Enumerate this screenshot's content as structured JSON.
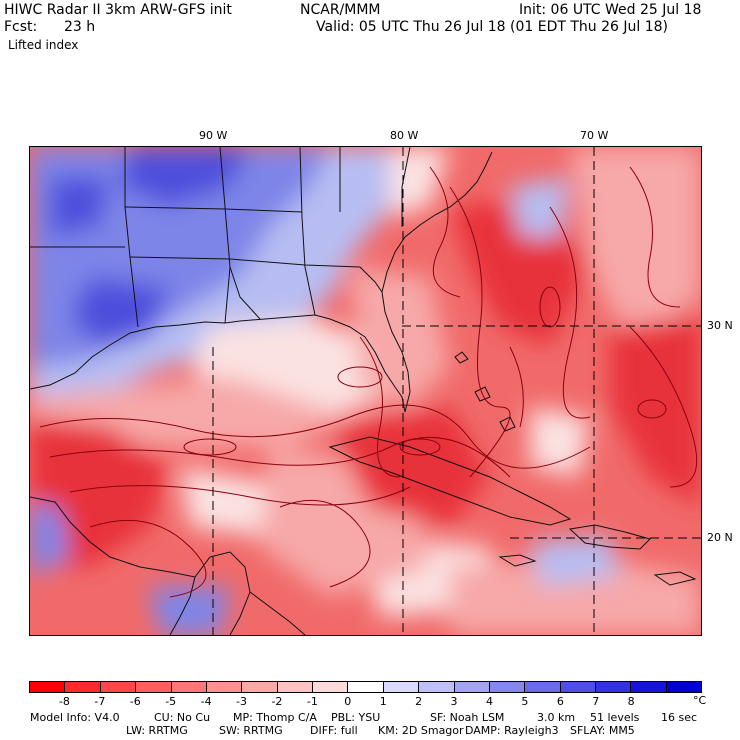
{
  "header": {
    "model_title": "HIWC Radar II 3km ARW-GFS init",
    "org": "NCAR/MMM",
    "init": "Init: 06 UTC Wed 25 Jul 18",
    "fcst_label": "Fcst:",
    "fcst_value": "23 h",
    "valid": "Valid: 05 UTC Thu 26 Jul 18 (01 EDT Thu 26 Jul 18)",
    "field": "Lifted index"
  },
  "map": {
    "lon_labels": [
      "90 W",
      "80 W",
      "70 W"
    ],
    "lat_labels": [
      "30 N",
      "20 N"
    ],
    "colors": {
      "strong_red": "#e8333a",
      "mid_red": "#f16a6a",
      "light_red": "#f7a8a8",
      "near_white": "#fbe2e2",
      "light_blue": "#b7bdf2",
      "mid_blue": "#7e85e8",
      "deep_blue": "#4e50dc",
      "contour": "#8a0010"
    }
  },
  "colorbar": {
    "labels": [
      "-8",
      "-7",
      "-6",
      "-5",
      "-4",
      "-3",
      "-2",
      "-1",
      "0",
      "1",
      "2",
      "3",
      "4",
      "5",
      "6",
      "7",
      "8"
    ],
    "unit": "°C",
    "colors": [
      "#ff0000",
      "#ff2a2a",
      "#ff4747",
      "#ff5f5f",
      "#ff7878",
      "#ff9090",
      "#ffa8a8",
      "#ffc1c1",
      "#ffdada",
      "#ffffff",
      "#dadaff",
      "#bfbffa",
      "#a3a3f5",
      "#8787f0",
      "#6b6bea",
      "#4f4fe5",
      "#3333df",
      "#1515da",
      "#0000d2"
    ]
  },
  "footer": {
    "model_info": "Model Info: V4.0",
    "cu": "CU: No Cu",
    "mp": "MP: Thomp C/A",
    "pbl": "PBL: YSU",
    "sf": "SF: Noah LSM",
    "res": "3.0 km",
    "levels": "51 levels",
    "dt": "16 sec",
    "lw": "LW: RRTMG",
    "sw": "SW: RRTMG",
    "diff": "DIFF: full",
    "km": "KM: 2D Smagor",
    "damp": "DAMP: Rayleigh3",
    "sflay": "SFLAY: MM5"
  }
}
